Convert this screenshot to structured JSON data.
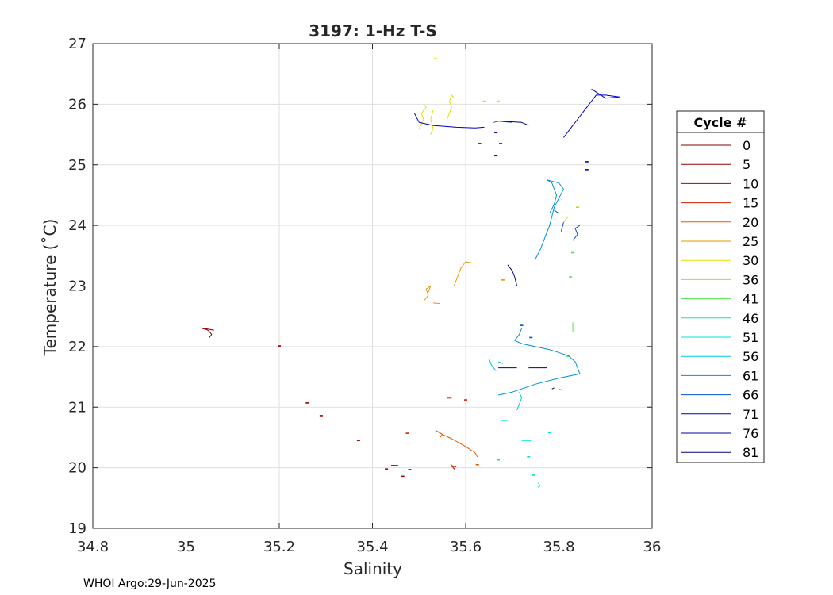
{
  "chart_data": {
    "type": "line",
    "title": "3197: 1-Hz T-S",
    "xlabel": "Salinity",
    "ylabel": "Temperature (˚C)",
    "xlim": [
      34.8,
      36
    ],
    "ylim": [
      19,
      27
    ],
    "xticks": [
      34.8,
      35,
      35.2,
      35.4,
      35.6,
      35.8,
      36
    ],
    "xtick_labels": [
      "34.8",
      "35",
      "35.2",
      "35.4",
      "35.6",
      "35.8",
      "36"
    ],
    "yticks": [
      19,
      20,
      21,
      22,
      23,
      24,
      25,
      26,
      27
    ],
    "ytick_labels": [
      "19",
      "20",
      "21",
      "22",
      "23",
      "24",
      "25",
      "26",
      "27"
    ],
    "grid": true,
    "legend": {
      "title": "Cycle #",
      "placement": "outside-right",
      "entries": [
        {
          "label": "0",
          "color": "#800000"
        },
        {
          "label": "5",
          "color": "#9a0000"
        },
        {
          "label": "10",
          "color": "#b40000"
        },
        {
          "label": "15",
          "color": "#d02000"
        },
        {
          "label": "20",
          "color": "#e35a00"
        },
        {
          "label": "25",
          "color": "#e69a00"
        },
        {
          "label": "30",
          "color": "#e6e000"
        },
        {
          "label": "36",
          "color": "#9ee62a"
        },
        {
          "label": "41",
          "color": "#4ce64c"
        },
        {
          "label": "46",
          "color": "#16e6a0"
        },
        {
          "label": "51",
          "color": "#00e6d8"
        },
        {
          "label": "56",
          "color": "#00c8e6"
        },
        {
          "label": "61",
          "color": "#0090d8"
        },
        {
          "label": "66",
          "color": "#0050d8"
        },
        {
          "label": "71",
          "color": "#0000c8"
        },
        {
          "label": "76",
          "color": "#0000a0"
        },
        {
          "label": "81",
          "color": "#000080"
        }
      ]
    },
    "series": [
      {
        "cycle": "0",
        "color": "#800000",
        "segments": [
          [
            [
              34.94,
              22.49
            ],
            [
              35.01,
              22.49
            ]
          ],
          [
            [
              35.03,
              22.31
            ],
            [
              35.045,
              22.28
            ],
            [
              35.05,
              22.25
            ],
            [
              35.055,
              22.2
            ],
            [
              35.05,
              22.15
            ]
          ],
          [
            [
              35.2,
              22.01
            ]
          ]
        ]
      },
      {
        "cycle": "5",
        "color": "#9a0000",
        "segments": [
          [
            [
              35.04,
              22.3
            ],
            [
              35.06,
              22.27
            ]
          ],
          [
            [
              35.26,
              21.07
            ]
          ],
          [
            [
              35.29,
              20.86
            ]
          ]
        ]
      },
      {
        "cycle": "10",
        "color": "#b40000",
        "segments": [
          [
            [
              35.37,
              20.45
            ]
          ],
          [
            [
              35.43,
              19.98
            ]
          ],
          [
            [
              35.44,
              20.04
            ],
            [
              35.455,
              20.04
            ]
          ],
          [
            [
              35.465,
              19.86
            ]
          ],
          [
            [
              35.48,
              19.97
            ]
          ]
        ]
      },
      {
        "cycle": "15",
        "color": "#d02000",
        "segments": [
          [
            [
              35.475,
              20.57
            ]
          ],
          [
            [
              35.57,
              20.05
            ],
            [
              35.575,
              19.98
            ],
            [
              35.58,
              20.03
            ],
            [
              35.57,
              20.01
            ]
          ],
          [
            [
              35.56,
              21.15
            ],
            [
              35.57,
              21.15
            ]
          ],
          [
            [
              35.6,
              21.12
            ]
          ]
        ]
      },
      {
        "cycle": "20",
        "color": "#e35a00",
        "segments": [
          [
            [
              35.535,
              20.62
            ],
            [
              35.55,
              20.55
            ],
            [
              35.57,
              20.48
            ],
            [
              35.6,
              20.35
            ],
            [
              35.62,
              20.25
            ],
            [
              35.625,
              20.18
            ]
          ],
          [
            [
              35.54,
              20.6
            ],
            [
              35.55,
              20.55
            ],
            [
              35.545,
              20.5
            ]
          ],
          [
            [
              35.625,
              20.05
            ]
          ]
        ]
      },
      {
        "cycle": "25",
        "color": "#e69a00",
        "segments": [
          [
            [
              35.51,
              22.75
            ],
            [
              35.52,
              22.85
            ],
            [
              35.515,
              22.95
            ],
            [
              35.525,
              23.0
            ],
            [
              35.52,
              22.9
            ]
          ],
          [
            [
              35.53,
              22.72
            ],
            [
              35.545,
              22.71
            ]
          ],
          [
            [
              35.575,
              23.0
            ],
            [
              35.58,
              23.1
            ],
            [
              35.585,
              23.2
            ],
            [
              35.59,
              23.3
            ],
            [
              35.6,
              23.4
            ],
            [
              35.615,
              23.38
            ]
          ],
          [
            [
              35.68,
              23.1
            ]
          ]
        ]
      },
      {
        "cycle": "30",
        "color": "#e6e000",
        "segments": [
          [
            [
              35.535,
              26.75
            ]
          ],
          [
            [
              35.5,
              25.6
            ],
            [
              35.51,
              25.75
            ],
            [
              35.505,
              25.85
            ],
            [
              35.515,
              25.95
            ],
            [
              35.51,
              26.0
            ]
          ],
          [
            [
              35.525,
              25.5
            ],
            [
              35.53,
              25.6
            ],
            [
              35.525,
              25.75
            ],
            [
              35.53,
              25.9
            ]
          ],
          [
            [
              35.56,
              25.75
            ],
            [
              35.565,
              25.85
            ],
            [
              35.57,
              25.95
            ],
            [
              35.565,
              26.05
            ],
            [
              35.57,
              26.15
            ],
            [
              35.575,
              26.1
            ]
          ],
          [
            [
              35.64,
              26.05
            ]
          ],
          [
            [
              35.67,
              26.05
            ]
          ]
        ]
      },
      {
        "cycle": "36",
        "color": "#9ee62a",
        "segments": [
          [
            [
              35.81,
              24.05
            ],
            [
              35.815,
              24.1
            ],
            [
              35.82,
              24.15
            ]
          ],
          [
            [
              35.84,
              24.3
            ]
          ]
        ]
      },
      {
        "cycle": "41",
        "color": "#4ce64c",
        "segments": [
          [
            [
              35.82,
              21.84
            ]
          ],
          [
            [
              35.8,
              21.3
            ],
            [
              35.81,
              21.28
            ]
          ],
          [
            [
              35.83,
              23.55
            ]
          ],
          [
            [
              35.825,
              23.15
            ]
          ],
          [
            [
              35.83,
              22.4
            ],
            [
              35.83,
              22.25
            ]
          ]
        ]
      },
      {
        "cycle": "46",
        "color": "#16e6a0",
        "segments": [
          [
            [
              35.745,
              19.88
            ]
          ],
          [
            [
              35.755,
              19.75
            ],
            [
              35.76,
              19.7
            ],
            [
              35.755,
              19.68
            ]
          ]
        ]
      },
      {
        "cycle": "51",
        "color": "#00e6d8",
        "segments": [
          [
            [
              35.67,
              20.13
            ]
          ],
          [
            [
              35.675,
              20.78
            ],
            [
              35.69,
              20.78
            ]
          ],
          [
            [
              35.72,
              20.45
            ],
            [
              35.74,
              20.45
            ]
          ],
          [
            [
              35.735,
              20.18
            ]
          ],
          [
            [
              35.78,
              20.58
            ]
          ]
        ]
      },
      {
        "cycle": "56",
        "color": "#00c8e6",
        "segments": [
          [
            [
              35.71,
              20.95
            ],
            [
              35.715,
              21.05
            ],
            [
              35.72,
              21.15
            ],
            [
              35.715,
              21.25
            ]
          ],
          [
            [
              35.65,
              21.8
            ],
            [
              35.655,
              21.7
            ],
            [
              35.66,
              21.65
            ],
            [
              35.665,
              21.6
            ]
          ],
          [
            [
              35.67,
              21.75
            ],
            [
              35.68,
              21.72
            ]
          ]
        ]
      },
      {
        "cycle": "61",
        "color": "#0090d8",
        "segments": [
          [
            [
              35.67,
              21.2
            ],
            [
              35.7,
              21.25
            ],
            [
              35.75,
              21.38
            ],
            [
              35.8,
              21.48
            ],
            [
              35.845,
              21.55
            ],
            [
              35.835,
              21.75
            ],
            [
              35.82,
              21.85
            ],
            [
              35.78,
              21.95
            ],
            [
              35.72,
              22.05
            ],
            [
              35.705,
              22.1
            ],
            [
              35.715,
              22.2
            ],
            [
              35.72,
              22.3
            ]
          ],
          [
            [
              35.78,
              24.2
            ],
            [
              35.79,
              24.35
            ],
            [
              35.795,
              24.5
            ],
            [
              35.79,
              24.6
            ],
            [
              35.785,
              24.7
            ],
            [
              35.775,
              24.75
            ],
            [
              35.8,
              24.7
            ],
            [
              35.81,
              24.6
            ],
            [
              35.8,
              24.45
            ],
            [
              35.79,
              24.3
            ],
            [
              35.78,
              24.0
            ],
            [
              35.77,
              23.8
            ],
            [
              35.76,
              23.6
            ],
            [
              35.75,
              23.45
            ]
          ]
        ]
      },
      {
        "cycle": "66",
        "color": "#0050d8",
        "segments": [
          [
            [
              35.83,
              23.75
            ],
            [
              35.84,
              23.85
            ],
            [
              35.835,
              23.95
            ],
            [
              35.845,
              24.0
            ]
          ],
          [
            [
              35.79,
              24.25
            ],
            [
              35.8,
              24.2
            ]
          ],
          [
            [
              35.81,
              24.05
            ],
            [
              35.805,
              23.9
            ]
          ],
          [
            [
              35.72,
              22.35
            ]
          ],
          [
            [
              35.74,
              22.15
            ]
          ],
          [
            [
              35.7,
              25.7
            ],
            [
              35.67,
              25.72
            ],
            [
              35.66,
              25.7
            ]
          ]
        ]
      },
      {
        "cycle": "71",
        "color": "#0000c8",
        "segments": [
          [
            [
              35.81,
              25.45
            ],
            [
              35.82,
              25.55
            ],
            [
              35.83,
              25.65
            ],
            [
              35.84,
              25.75
            ],
            [
              35.85,
              25.85
            ],
            [
              35.86,
              25.95
            ],
            [
              35.87,
              26.05
            ],
            [
              35.88,
              26.15
            ],
            [
              35.9,
              26.15
            ],
            [
              35.93,
              26.12
            ],
            [
              35.9,
              26.1
            ],
            [
              35.88,
              26.2
            ],
            [
              35.87,
              26.25
            ]
          ],
          [
            [
              35.49,
              25.85
            ],
            [
              35.5,
              25.7
            ],
            [
              35.53,
              25.65
            ],
            [
              35.58,
              25.62
            ],
            [
              35.62,
              25.61
            ],
            [
              35.64,
              25.62
            ]
          ],
          [
            [
              35.665,
              25.53
            ]
          ],
          [
            [
              35.675,
              25.35
            ]
          ],
          [
            [
              35.665,
              25.15
            ]
          ],
          [
            [
              35.63,
              25.35
            ]
          ],
          [
            [
              35.86,
              25.05
            ]
          ],
          [
            [
              35.86,
              24.92
            ]
          ]
        ]
      },
      {
        "cycle": "76",
        "color": "#0000a0",
        "segments": [
          [
            [
              35.69,
              23.35
            ],
            [
              35.7,
              23.25
            ],
            [
              35.705,
              23.15
            ],
            [
              35.71,
              23.0
            ]
          ],
          [
            [
              35.67,
              21.65
            ],
            [
              35.71,
              21.65
            ]
          ],
          [
            [
              35.735,
              21.65
            ],
            [
              35.775,
              21.65
            ]
          ]
        ]
      },
      {
        "cycle": "81",
        "color": "#000080",
        "segments": [
          [
            [
              35.785,
              21.3
            ],
            [
              35.79,
              21.32
            ]
          ],
          [
            [
              35.68,
              25.72
            ],
            [
              35.72,
              25.7
            ],
            [
              35.735,
              25.65
            ]
          ]
        ]
      }
    ],
    "footer": "WHOI Argo:29-Jun-2025"
  }
}
